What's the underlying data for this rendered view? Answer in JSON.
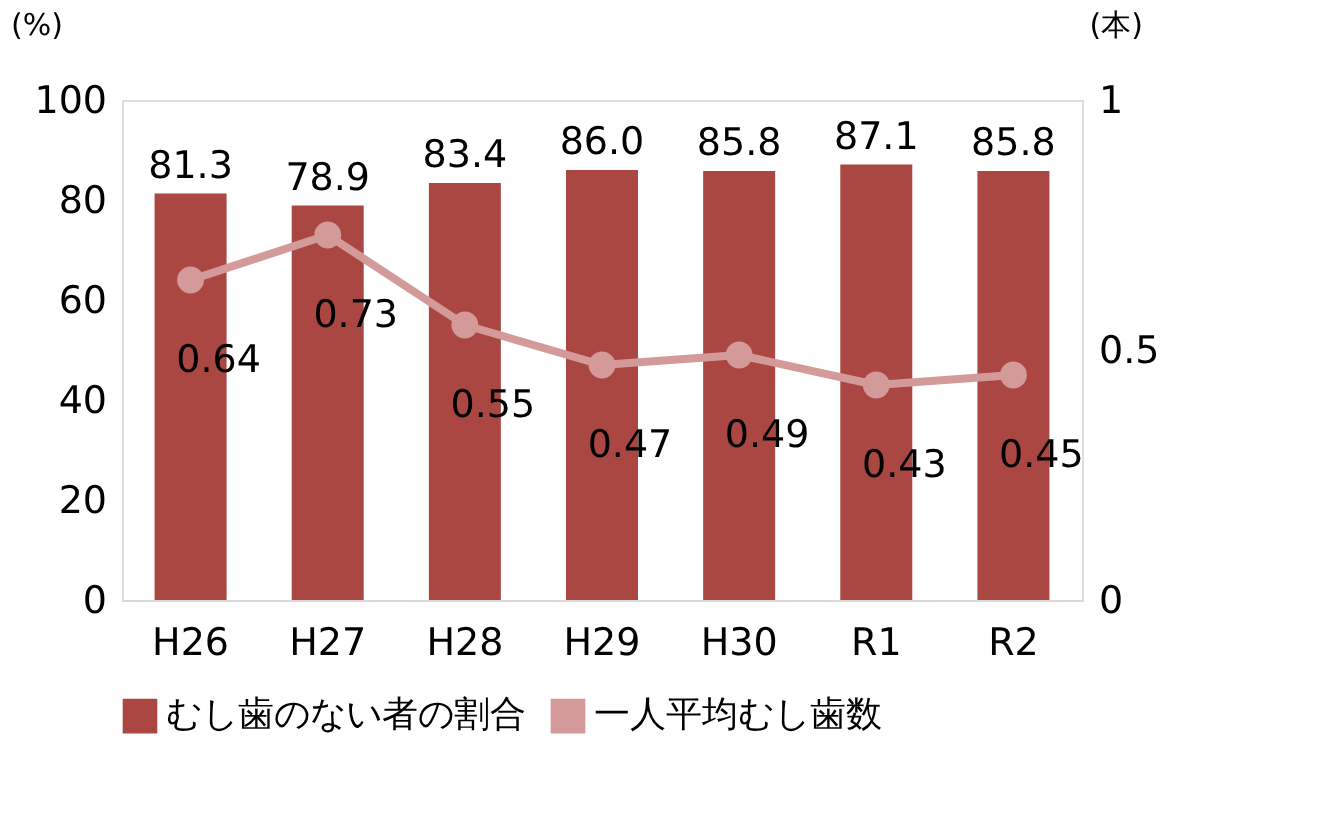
{
  "chart_data": {
    "type": "bar",
    "categories": [
      "H26",
      "H27",
      "H28",
      "H29",
      "H30",
      "R1",
      "R2"
    ],
    "ylabel": "(%)",
    "y2label": "(本)",
    "series": [
      {
        "name": "むし歯のない者の割合",
        "color": "#ab4743",
        "values": [
          81.3,
          78.9,
          83.4,
          86.0,
          85.8,
          87.1,
          85.8
        ],
        "value_labels": [
          "81.3",
          "78.9",
          "83.4",
          "86.0",
          "85.8",
          "87.1",
          "85.8"
        ]
      },
      {
        "name": "一人平均むし歯数",
        "type": "line",
        "axis": "y2",
        "color": "#d49a9a",
        "values": [
          0.64,
          0.73,
          0.55,
          0.47,
          0.49,
          0.43,
          0.45
        ],
        "value_labels": [
          "0.64",
          "0.73",
          "0.55",
          "0.47",
          "0.49",
          "0.43",
          "0.45"
        ]
      }
    ],
    "ylim": [
      0,
      100
    ],
    "yticks": [
      0,
      20,
      40,
      60,
      80,
      100
    ],
    "y2lim": [
      0,
      1
    ],
    "y2ticks": [
      0,
      0.5,
      1
    ],
    "legend": "bottom",
    "grid": false,
    "marker": "circle",
    "line_style": "solid"
  }
}
